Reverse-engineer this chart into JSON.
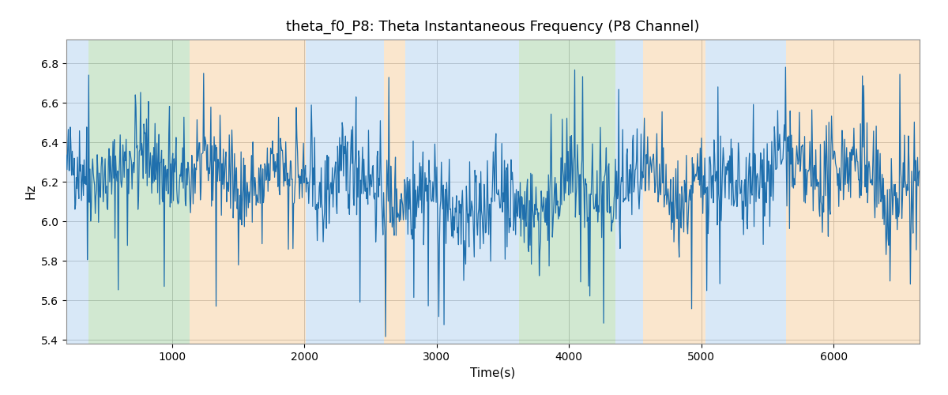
{
  "title": "theta_f0_P8: Theta Instantaneous Frequency (P8 Channel)",
  "xlabel": "Time(s)",
  "ylabel": "Hz",
  "xlim": [
    200,
    6650
  ],
  "ylim": [
    5.38,
    6.92
  ],
  "title_fontsize": 13,
  "label_fontsize": 11,
  "line_color": "#1f6fad",
  "line_width": 0.9,
  "background_color": "#ffffff",
  "grid_color": "#b0b0b0",
  "bg_bands": [
    {
      "xmin": 200,
      "xmax": 370,
      "color": "#aaccee",
      "alpha": 0.45
    },
    {
      "xmin": 370,
      "xmax": 1130,
      "color": "#99cc99",
      "alpha": 0.45
    },
    {
      "xmin": 1130,
      "xmax": 2010,
      "color": "#f5c990",
      "alpha": 0.45
    },
    {
      "xmin": 2010,
      "xmax": 2600,
      "color": "#aaccee",
      "alpha": 0.45
    },
    {
      "xmin": 2600,
      "xmax": 2760,
      "color": "#f5c990",
      "alpha": 0.45
    },
    {
      "xmin": 2760,
      "xmax": 3620,
      "color": "#aaccee",
      "alpha": 0.45
    },
    {
      "xmin": 3620,
      "xmax": 3720,
      "color": "#99cc99",
      "alpha": 0.45
    },
    {
      "xmin": 3720,
      "xmax": 4350,
      "color": "#99cc99",
      "alpha": 0.45
    },
    {
      "xmin": 4350,
      "xmax": 4560,
      "color": "#aaccee",
      "alpha": 0.45
    },
    {
      "xmin": 4560,
      "xmax": 5030,
      "color": "#f5c990",
      "alpha": 0.45
    },
    {
      "xmin": 5030,
      "xmax": 5430,
      "color": "#aaccee",
      "alpha": 0.45
    },
    {
      "xmin": 5430,
      "xmax": 5640,
      "color": "#aaccee",
      "alpha": 0.45
    },
    {
      "xmin": 5640,
      "xmax": 6650,
      "color": "#f5c990",
      "alpha": 0.45
    }
  ],
  "seed": 42,
  "n_points": 1300,
  "x_start": 200,
  "x_end": 6650,
  "base_freq": 6.18,
  "yticks": [
    5.4,
    5.6,
    5.8,
    6.0,
    6.2,
    6.4,
    6.6,
    6.8
  ],
  "xticks": [
    1000,
    2000,
    3000,
    4000,
    5000,
    6000
  ]
}
